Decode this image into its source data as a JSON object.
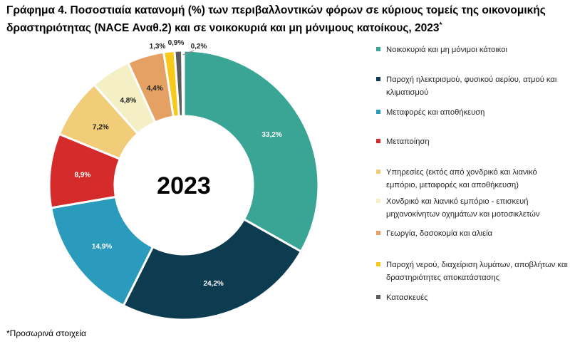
{
  "title": {
    "line1": "Γράφημα 4. Ποσοστιαία κατανομή (%) των περιβαλλοντικών φόρων σε κύριους τομείς της οικονομικής",
    "line2": "δραστηριότητας (NACE Αναθ.2) και σε νοικοκυριά και μη μόνιμους κατοίκους, 2023",
    "sup": "*"
  },
  "footnote": "*Προσωρινά στοιχεία",
  "chart_data": {
    "type": "pie",
    "variant": "donut",
    "center_text": "2023",
    "start_angle_deg": 0,
    "direction": "clockwise",
    "slices": [
      {
        "name": "Νοικοκυριά και μη μόνιμοι κάτοικοι",
        "value": 33.2,
        "label": "33,2%",
        "color": "#3aa594",
        "label_color": "#ffffff"
      },
      {
        "name": "Παροχή ηλεκτρισμού, φυσικού αερίου, ατμού και κλιματισμού",
        "value": 24.2,
        "label": "24,2%",
        "color": "#0d3b4f",
        "label_color": "#ffffff"
      },
      {
        "name": "Μεταφορές και αποθήκευση",
        "value": 14.9,
        "label": "14,9%",
        "color": "#2a9bbd",
        "label_color": "#ffffff"
      },
      {
        "name": "Μεταποίηση",
        "value": 8.9,
        "label": "8,9%",
        "color": "#d62b2b",
        "label_color": "#ffffff"
      },
      {
        "name": "Υπηρεσίες (εκτός από χονδρικό και λιανικό εμπόριο, μεταφορές και αποθήκευση)",
        "value": 7.2,
        "label": "7,2%",
        "color": "#f2cd79",
        "label_color": "#222222"
      },
      {
        "name": "Χονδρικό και λιανικό εμπόριο - επισκευή μηχανοκίνητων οχημάτων και μοτοσικλετών",
        "value": 4.8,
        "label": "4,8%",
        "color": "#f4efc4",
        "label_color": "#222222"
      },
      {
        "name": "Γεωργία, δασοκομία και αλιεία",
        "value": 4.4,
        "label": "4,4%",
        "color": "#e5a064",
        "label_color": "#222222"
      },
      {
        "name": "Παροχή νερού, διαχείριση λυμάτων, αποβλήτων και δραστηριότητες αποκατάστασης",
        "value": 1.3,
        "label": "1,3%",
        "color": "#f8c81b",
        "label_color": "#222222"
      },
      {
        "name": "Κατασκευές",
        "value": 0.9,
        "label": "0,9%",
        "color": "#5c5c5c",
        "label_color": "#222222"
      },
      {
        "name": "",
        "value": 0.2,
        "label": "0,2%",
        "color": "#9a9a9a",
        "label_color": "#222222"
      }
    ],
    "legend": [
      {
        "text": "Νοικοκυριά και μη μόνιμοι κάτοικοι",
        "color": "#3aa594"
      },
      {
        "text": "Παροχή ηλεκτρισμού, φυσικού αερίου, ατμού και κλιματισμού",
        "color": "#0d3b4f"
      },
      {
        "text": "Μεταφορές και αποθήκευση",
        "color": "#2a9bbd"
      },
      {
        "text": "Μεταποίηση",
        "color": "#d62b2b"
      },
      {
        "text": "Υπηρεσίες (εκτός από χονδρικό και λιανικό εμπόριο, μεταφορές και αποθήκευση)",
        "color": "#f2cd79"
      },
      {
        "text": "Χονδρικό και λιανικό εμπόριο - επισκευή μηχανοκίνητων οχημάτων και μοτοσικλετών",
        "color": "#f4efc4"
      },
      {
        "text": "Γεωργία, δασοκομία και αλιεία",
        "color": "#e5a064"
      },
      {
        "text": "Παροχή νερού, διαχείριση λυμάτων, αποβλήτων και δραστηριότητες αποκατάστασης",
        "color": "#f8c81b"
      },
      {
        "text": "Κατασκευές",
        "color": "#5c5c5c"
      }
    ],
    "legend_placement": "right"
  }
}
